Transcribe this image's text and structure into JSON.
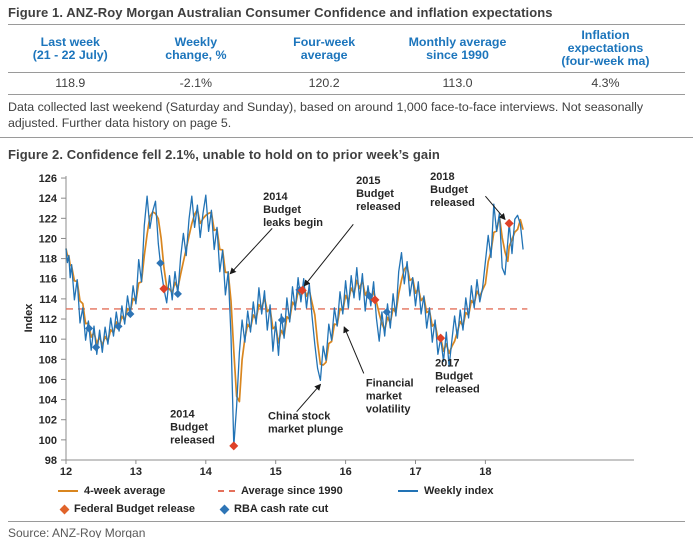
{
  "figure1": {
    "title": "Figure 1. ANZ-Roy Morgan Australian Consumer Confidence and inflation expectations",
    "table": {
      "headers": [
        "Last week\n(21 - 22 July)",
        "Weekly\nchange, %",
        "Four-week\naverage",
        "Monthly average\nsince 1990",
        "Inflation\nexpectations\n(four-week ma)"
      ],
      "values": [
        "118.9",
        "-2.1%",
        "120.2",
        "113.0",
        "4.3%"
      ]
    },
    "note": "Data collected last weekend (Saturday and Sunday), based on around 1,000 face-to-face interviews. Not seasonally adjusted. Further data history on page 5."
  },
  "figure2": {
    "title": "Figure 2. Confidence fell 2.1%, unable to hold on to prior week’s gain"
  },
  "source": "Source: ANZ-Roy Morgan",
  "chart_data": {
    "type": "line",
    "title": "Figure 2. Confidence fell 2.1%, unable to hold on to prior week’s gain",
    "xlabel": "",
    "ylabel": "Index",
    "ylim": [
      98,
      126
    ],
    "ytick_step": 2,
    "xticks": [
      12,
      13,
      14,
      15,
      16,
      17,
      18
    ],
    "xlim": [
      12,
      18.6
    ],
    "grid": false,
    "average_since_1990": {
      "label": "Average since 1990",
      "value": 113,
      "color": "#e4705b",
      "style": "dashed"
    },
    "weekly_index": {
      "label": "Weekly index",
      "color": "#2273b5",
      "points": [
        [
          12.0,
          119.0
        ],
        [
          12.02,
          117.6
        ],
        [
          12.04,
          118.3
        ],
        [
          12.06,
          116.1
        ],
        [
          12.08,
          117.4
        ],
        [
          12.12,
          113.9
        ],
        [
          12.16,
          115.9
        ],
        [
          12.2,
          111.6
        ],
        [
          12.24,
          113.1
        ],
        [
          12.28,
          109.9
        ],
        [
          12.32,
          111.8
        ],
        [
          12.36,
          108.9
        ],
        [
          12.4,
          111.3
        ],
        [
          12.44,
          108.5
        ],
        [
          12.48,
          110.9
        ],
        [
          12.52,
          108.7
        ],
        [
          12.56,
          111.2
        ],
        [
          12.6,
          109.5
        ],
        [
          12.64,
          112.1
        ],
        [
          12.68,
          110.3
        ],
        [
          12.72,
          112.7
        ],
        [
          12.76,
          110.8
        ],
        [
          12.8,
          113.3
        ],
        [
          12.84,
          111.5
        ],
        [
          12.88,
          114.3
        ],
        [
          12.92,
          112.5
        ],
        [
          12.96,
          115.3
        ],
        [
          13.0,
          113.5
        ],
        [
          13.04,
          117.9
        ],
        [
          13.08,
          115.7
        ],
        [
          13.12,
          121.3
        ],
        [
          13.16,
          124.2
        ],
        [
          13.2,
          121.0
        ],
        [
          13.24,
          122.7
        ],
        [
          13.28,
          123.7
        ],
        [
          13.32,
          119.5
        ],
        [
          13.36,
          116.9
        ],
        [
          13.4,
          115.0
        ],
        [
          13.44,
          113.6
        ],
        [
          13.48,
          116.3
        ],
        [
          13.52,
          113.9
        ],
        [
          13.56,
          116.7
        ],
        [
          13.6,
          114.5
        ],
        [
          13.64,
          118.1
        ],
        [
          13.68,
          120.5
        ],
        [
          13.72,
          118.3
        ],
        [
          13.76,
          121.9
        ],
        [
          13.8,
          124.2
        ],
        [
          13.84,
          121.1
        ],
        [
          13.88,
          123.3
        ],
        [
          13.92,
          120.1
        ],
        [
          13.96,
          122.5
        ],
        [
          14.0,
          124.3
        ],
        [
          14.04,
          120.7
        ],
        [
          14.08,
          122.8
        ],
        [
          14.12,
          118.9
        ],
        [
          14.16,
          121.1
        ],
        [
          14.2,
          116.7
        ],
        [
          14.24,
          118.8
        ],
        [
          14.28,
          114.4
        ],
        [
          14.32,
          116.7
        ],
        [
          14.36,
          110.3
        ],
        [
          14.4,
          99.4
        ],
        [
          14.44,
          103.3
        ],
        [
          14.48,
          108.7
        ],
        [
          14.52,
          111.9
        ],
        [
          14.56,
          109.7
        ],
        [
          14.6,
          112.8
        ],
        [
          14.64,
          110.7
        ],
        [
          14.68,
          113.7
        ],
        [
          14.72,
          111.5
        ],
        [
          14.76,
          115.1
        ],
        [
          14.8,
          112.5
        ],
        [
          14.84,
          114.8
        ],
        [
          14.88,
          110.9
        ],
        [
          14.92,
          113.4
        ],
        [
          14.96,
          108.8
        ],
        [
          15.0,
          111.7
        ],
        [
          15.04,
          108.4
        ],
        [
          15.08,
          112.5
        ],
        [
          15.12,
          110.1
        ],
        [
          15.16,
          114.1
        ],
        [
          15.2,
          111.7
        ],
        [
          15.24,
          115.2
        ],
        [
          15.28,
          112.9
        ],
        [
          15.32,
          116.1
        ],
        [
          15.36,
          113.7
        ],
        [
          15.4,
          116.0
        ],
        [
          15.44,
          113.1
        ],
        [
          15.48,
          115.5
        ],
        [
          15.52,
          112.3
        ],
        [
          15.56,
          109.5
        ],
        [
          15.6,
          107.1
        ],
        [
          15.64,
          105.9
        ],
        [
          15.68,
          109.3
        ],
        [
          15.72,
          107.9
        ],
        [
          15.76,
          111.5
        ],
        [
          15.8,
          109.9
        ],
        [
          15.84,
          113.1
        ],
        [
          15.88,
          111.3
        ],
        [
          15.92,
          114.7
        ],
        [
          15.96,
          112.5
        ],
        [
          16.0,
          115.8
        ],
        [
          16.04,
          113.1
        ],
        [
          16.08,
          116.3
        ],
        [
          16.12,
          114.1
        ],
        [
          16.16,
          117.1
        ],
        [
          16.2,
          113.9
        ],
        [
          16.24,
          116.5
        ],
        [
          16.28,
          112.8
        ],
        [
          16.32,
          115.3
        ],
        [
          16.36,
          113.3
        ],
        [
          16.4,
          115.7
        ],
        [
          16.44,
          112.1
        ],
        [
          16.48,
          109.8
        ],
        [
          16.52,
          112.7
        ],
        [
          16.56,
          110.3
        ],
        [
          16.6,
          113.5
        ],
        [
          16.64,
          111.1
        ],
        [
          16.68,
          114.5
        ],
        [
          16.72,
          112.3
        ],
        [
          16.76,
          116.7
        ],
        [
          16.8,
          118.6
        ],
        [
          16.84,
          115.5
        ],
        [
          16.88,
          117.7
        ],
        [
          16.92,
          114.3
        ],
        [
          16.96,
          116.1
        ],
        [
          17.0,
          113.3
        ],
        [
          17.04,
          115.7
        ],
        [
          17.08,
          112.5
        ],
        [
          17.12,
          114.3
        ],
        [
          17.16,
          111.1
        ],
        [
          17.2,
          113.1
        ],
        [
          17.24,
          109.7
        ],
        [
          17.28,
          111.9
        ],
        [
          17.32,
          108.5
        ],
        [
          17.36,
          110.1
        ],
        [
          17.4,
          107.8
        ],
        [
          17.44,
          110.7
        ],
        [
          17.48,
          107.3
        ],
        [
          17.52,
          109.8
        ],
        [
          17.56,
          112.3
        ],
        [
          17.6,
          110.1
        ],
        [
          17.64,
          112.9
        ],
        [
          17.68,
          110.9
        ],
        [
          17.72,
          114.1
        ],
        [
          17.76,
          112.1
        ],
        [
          17.8,
          115.3
        ],
        [
          17.84,
          113.1
        ],
        [
          17.88,
          115.9
        ],
        [
          17.92,
          113.7
        ],
        [
          17.96,
          115.1
        ],
        [
          18.0,
          117.7
        ],
        [
          18.04,
          120.3
        ],
        [
          18.08,
          118.1
        ],
        [
          18.12,
          123.4
        ],
        [
          18.16,
          120.7
        ],
        [
          18.2,
          122.5
        ],
        [
          18.24,
          117.1
        ],
        [
          18.28,
          116.4
        ],
        [
          18.32,
          119.7
        ],
        [
          18.34,
          121.5
        ],
        [
          18.38,
          118.5
        ],
        [
          18.42,
          121.9
        ],
        [
          18.46,
          122.3
        ],
        [
          18.5,
          121.4
        ],
        [
          18.54,
          118.9
        ]
      ]
    },
    "four_week_average": {
      "label": "4-week average",
      "color": "#d9861f",
      "derived": "trailing_moving_average",
      "window": 3
    },
    "markers": {
      "federal_budget_release": {
        "label": "Federal Budget release",
        "shape": "diamond",
        "color": "#df4128",
        "x": [
          13.4,
          14.4,
          15.38,
          16.42,
          17.36,
          18.34
        ]
      },
      "rba_cash_rate_cut": {
        "label": "RBA cash rate cut",
        "shape": "diamond",
        "color": "#2e75b6",
        "x": [
          12.33,
          12.43,
          12.75,
          12.92,
          13.35,
          13.6,
          15.09,
          15.34,
          16.34,
          16.59
        ]
      }
    },
    "annotations": [
      {
        "lines": [
          "2014",
          "Budget",
          "leaks begin"
        ],
        "x": 14.82,
        "y": 123.8,
        "arrow": {
          "x1": 14.95,
          "y1": 121.0,
          "x2": 14.35,
          "y2": 116.5
        }
      },
      {
        "lines": [
          "2015",
          "Budget",
          "released"
        ],
        "x": 16.15,
        "y": 125.4,
        "arrow": {
          "x1": 16.11,
          "y1": 121.4,
          "x2": 15.41,
          "y2": 115.3
        }
      },
      {
        "lines": [
          "2018",
          "Budget",
          "released"
        ],
        "x": 17.21,
        "y": 125.8,
        "arrow": {
          "x1": 18.0,
          "y1": 124.2,
          "x2": 18.28,
          "y2": 121.9
        }
      },
      {
        "lines": [
          "2014",
          "Budget",
          "released"
        ],
        "x": 13.49,
        "y": 102.2
      },
      {
        "lines": [
          "China stock",
          "market plunge"
        ],
        "x": 14.89,
        "y": 102.0,
        "arrow": {
          "x1": 15.3,
          "y1": 102.8,
          "x2": 15.64,
          "y2": 105.5
        }
      },
      {
        "lines": [
          "Financial",
          "market",
          "volatility"
        ],
        "x": 16.29,
        "y": 105.3,
        "arrow": {
          "x1": 16.26,
          "y1": 106.6,
          "x2": 15.98,
          "y2": 111.2
        }
      },
      {
        "lines": [
          "2017",
          "Budget",
          "released"
        ],
        "x": 17.28,
        "y": 107.3
      }
    ]
  },
  "legend": {
    "rows": [
      [
        {
          "swatch": "line",
          "color": "#d9861f",
          "label": "4-week average"
        },
        {
          "swatch": "dashed",
          "color": "#e4705b",
          "label": "Average since 1990"
        },
        {
          "swatch": "line",
          "color": "#2273b5",
          "label": "Weekly index"
        }
      ],
      [
        {
          "swatch": "diamond",
          "color": "#e0632a",
          "label": "Federal Budget release"
        },
        {
          "swatch": "diamond",
          "color": "#2e75b6",
          "label": "RBA cash rate cut"
        }
      ]
    ]
  }
}
